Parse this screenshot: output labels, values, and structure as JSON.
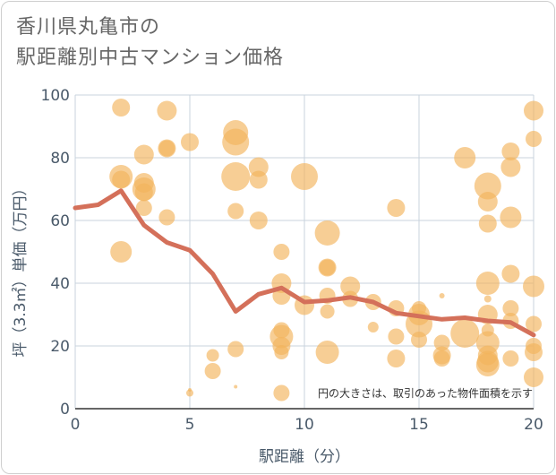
{
  "title_line1": "香川県丸亀市の",
  "title_line2": "駅距離別中古マンション価格",
  "chart_data": {
    "type": "scatter",
    "xlabel": "駅距離（分）",
    "ylabel": "坪（3.3㎡）単価（万円）",
    "xlim": [
      0,
      20
    ],
    "ylim": [
      0,
      100
    ],
    "xticks": [
      0,
      5,
      10,
      15,
      20
    ],
    "yticks": [
      0,
      20,
      40,
      60,
      80,
      100
    ],
    "grid": true,
    "note": "円の大きさは、取引のあった物件面積を示す",
    "colors": {
      "bubble": "#f2b35c",
      "line": "#d4705a",
      "grid": "#c9d3dd",
      "plot_bg": "#ffffff"
    },
    "points": [
      {
        "x": 2,
        "y": 96,
        "s": 10
      },
      {
        "x": 2,
        "y": 74,
        "s": 13
      },
      {
        "x": 2,
        "y": 73,
        "s": 10
      },
      {
        "x": 2,
        "y": 50,
        "s": 12
      },
      {
        "x": 3,
        "y": 81,
        "s": 11
      },
      {
        "x": 3,
        "y": 72,
        "s": 11
      },
      {
        "x": 3,
        "y": 70,
        "s": 13
      },
      {
        "x": 3,
        "y": 69,
        "s": 10
      },
      {
        "x": 3,
        "y": 64,
        "s": 9
      },
      {
        "x": 4,
        "y": 95,
        "s": 11
      },
      {
        "x": 4,
        "y": 83,
        "s": 10
      },
      {
        "x": 4,
        "y": 83,
        "s": 9
      },
      {
        "x": 4,
        "y": 61,
        "s": 9
      },
      {
        "x": 5,
        "y": 85,
        "s": 10
      },
      {
        "x": 5,
        "y": 5,
        "s": 4
      },
      {
        "x": 5,
        "y": 6,
        "s": 2
      },
      {
        "x": 6,
        "y": 17,
        "s": 7
      },
      {
        "x": 6,
        "y": 12,
        "s": 9
      },
      {
        "x": 7,
        "y": 88,
        "s": 14
      },
      {
        "x": 7,
        "y": 85,
        "s": 15
      },
      {
        "x": 7,
        "y": 74,
        "s": 16
      },
      {
        "x": 7,
        "y": 63,
        "s": 9
      },
      {
        "x": 7,
        "y": 19,
        "s": 9
      },
      {
        "x": 7,
        "y": 7,
        "s": 2
      },
      {
        "x": 8,
        "y": 77,
        "s": 11
      },
      {
        "x": 8,
        "y": 73,
        "s": 10
      },
      {
        "x": 8,
        "y": 60,
        "s": 10
      },
      {
        "x": 9,
        "y": 50,
        "s": 9
      },
      {
        "x": 9,
        "y": 40,
        "s": 11
      },
      {
        "x": 9,
        "y": 36,
        "s": 10
      },
      {
        "x": 9,
        "y": 25,
        "s": 9
      },
      {
        "x": 9,
        "y": 23,
        "s": 13
      },
      {
        "x": 9,
        "y": 20,
        "s": 10
      },
      {
        "x": 9,
        "y": 18,
        "s": 8
      },
      {
        "x": 9,
        "y": 5,
        "s": 9
      },
      {
        "x": 10,
        "y": 74,
        "s": 15
      },
      {
        "x": 10,
        "y": 33,
        "s": 11
      },
      {
        "x": 11,
        "y": 56,
        "s": 14
      },
      {
        "x": 11,
        "y": 45,
        "s": 10
      },
      {
        "x": 11,
        "y": 45,
        "s": 9
      },
      {
        "x": 11,
        "y": 36,
        "s": 9
      },
      {
        "x": 11,
        "y": 31,
        "s": 8
      },
      {
        "x": 11,
        "y": 18,
        "s": 13
      },
      {
        "x": 12,
        "y": 39,
        "s": 11
      },
      {
        "x": 12,
        "y": 35,
        "s": 9
      },
      {
        "x": 13,
        "y": 34,
        "s": 9
      },
      {
        "x": 13,
        "y": 26,
        "s": 6
      },
      {
        "x": 14,
        "y": 64,
        "s": 10
      },
      {
        "x": 14,
        "y": 32,
        "s": 9
      },
      {
        "x": 14,
        "y": 23,
        "s": 9
      },
      {
        "x": 14,
        "y": 16,
        "s": 10
      },
      {
        "x": 15,
        "y": 32,
        "s": 8
      },
      {
        "x": 15,
        "y": 30,
        "s": 12
      },
      {
        "x": 15,
        "y": 27,
        "s": 15
      },
      {
        "x": 15,
        "y": 22,
        "s": 9
      },
      {
        "x": 16,
        "y": 36,
        "s": 3
      },
      {
        "x": 16,
        "y": 21,
        "s": 9
      },
      {
        "x": 16,
        "y": 17,
        "s": 10
      },
      {
        "x": 16,
        "y": 16,
        "s": 9
      },
      {
        "x": 17,
        "y": 80,
        "s": 12
      },
      {
        "x": 17,
        "y": 24,
        "s": 16
      },
      {
        "x": 18,
        "y": 71,
        "s": 15
      },
      {
        "x": 18,
        "y": 66,
        "s": 11
      },
      {
        "x": 18,
        "y": 59,
        "s": 10
      },
      {
        "x": 18,
        "y": 40,
        "s": 13
      },
      {
        "x": 18,
        "y": 35,
        "s": 4
      },
      {
        "x": 18,
        "y": 30,
        "s": 11
      },
      {
        "x": 18,
        "y": 25,
        "s": 7
      },
      {
        "x": 18,
        "y": 21,
        "s": 13
      },
      {
        "x": 18,
        "y": 17,
        "s": 11
      },
      {
        "x": 18,
        "y": 15,
        "s": 12
      },
      {
        "x": 18,
        "y": 14,
        "s": 13
      },
      {
        "x": 19,
        "y": 82,
        "s": 10
      },
      {
        "x": 19,
        "y": 77,
        "s": 11
      },
      {
        "x": 19,
        "y": 61,
        "s": 12
      },
      {
        "x": 19,
        "y": 43,
        "s": 10
      },
      {
        "x": 19,
        "y": 32,
        "s": 9
      },
      {
        "x": 19,
        "y": 28,
        "s": 9
      },
      {
        "x": 19,
        "y": 16,
        "s": 9
      },
      {
        "x": 20,
        "y": 95,
        "s": 11
      },
      {
        "x": 20,
        "y": 86,
        "s": 9
      },
      {
        "x": 20,
        "y": 39,
        "s": 12
      },
      {
        "x": 20,
        "y": 27,
        "s": 9
      },
      {
        "x": 20,
        "y": 20,
        "s": 9
      },
      {
        "x": 20,
        "y": 18,
        "s": 10
      },
      {
        "x": 20,
        "y": 10,
        "s": 11
      }
    ],
    "trend": {
      "x": [
        0,
        1,
        2,
        3,
        4,
        5,
        6,
        7,
        8,
        9,
        10,
        11,
        12,
        13,
        14,
        15,
        16,
        17,
        18,
        19,
        20
      ],
      "y": [
        64,
        65,
        69.5,
        58.5,
        53,
        50.5,
        43,
        31,
        36.5,
        38.5,
        34,
        34.5,
        35.5,
        34,
        30.5,
        29.5,
        28.5,
        29,
        28,
        27.5,
        23.5
      ]
    }
  }
}
